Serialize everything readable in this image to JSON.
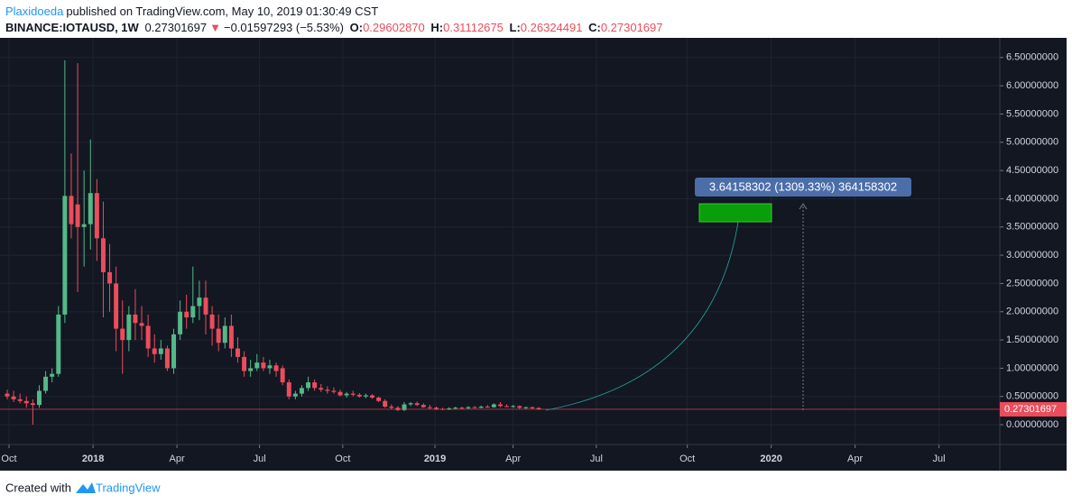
{
  "header": {
    "author": "Plaxidoeda",
    "published": "published on TradingView.com, May 10, 2019 01:30:49 CST",
    "symbol": "BINANCE:IOTAUSD, 1W",
    "price": "0.27301697",
    "arrow": "▼",
    "change": "−0.01597293 (−5.53%)",
    "o_label": "O:",
    "o": "0.29602870",
    "h_label": "H:",
    "h": "0.31112675",
    "l_label": "L:",
    "l": "0.26324491",
    "c_label": "C:",
    "c": "0.27301697"
  },
  "footer": {
    "created": "Created with",
    "brand": "TradingView"
  },
  "chart_data": {
    "type": "candlestick",
    "up_color": "#53b987",
    "down_color": "#eb4d5c",
    "background": "#131722",
    "grid": true,
    "annotation": "3.64158302 (1309.33%) 364158302",
    "x": [
      0,
      1,
      2,
      3,
      4,
      5,
      6,
      7,
      8,
      9,
      10,
      11,
      12,
      13,
      14,
      15,
      16,
      17,
      18,
      19,
      20,
      21,
      22,
      23,
      24,
      25,
      26,
      27,
      28,
      29,
      30,
      31,
      32,
      33,
      34,
      35,
      36,
      37,
      38,
      39,
      40,
      41,
      42,
      43,
      44,
      45,
      46,
      47,
      48,
      49,
      50,
      51,
      52,
      53,
      54,
      55,
      56,
      57,
      58,
      59,
      60,
      61,
      62,
      63,
      64,
      65,
      66,
      67,
      68,
      69,
      70,
      71,
      72,
      73,
      74,
      75,
      76,
      77,
      78,
      79,
      80,
      81,
      82,
      83
    ],
    "open": [
      0.55,
      0.5,
      0.45,
      0.42,
      0.38,
      0.35,
      0.6,
      0.85,
      0.9,
      1.95,
      4.05,
      3.9,
      3.5,
      3.55,
      4.1,
      3.3,
      2.7,
      2.5,
      1.7,
      1.5,
      1.95,
      1.8,
      1.75,
      1.35,
      1.25,
      1.35,
      1.0,
      1.6,
      2.0,
      1.9,
      2.1,
      2.25,
      1.95,
      1.7,
      1.45,
      1.75,
      1.35,
      1.2,
      0.95,
      1.0,
      1.1,
      1.0,
      1.05,
      1.0,
      0.75,
      0.5,
      0.55,
      0.65,
      0.75,
      0.65,
      0.62,
      0.6,
      0.58,
      0.52,
      0.55,
      0.53,
      0.5,
      0.52,
      0.48,
      0.42,
      0.32,
      0.3,
      0.26,
      0.36,
      0.38,
      0.35,
      0.31,
      0.3,
      0.28,
      0.27,
      0.29,
      0.3,
      0.29,
      0.31,
      0.3,
      0.32,
      0.31,
      0.36,
      0.33,
      0.32,
      0.33,
      0.3,
      0.31,
      0.2960287
    ],
    "high": [
      0.62,
      0.6,
      0.55,
      0.5,
      0.45,
      0.7,
      0.95,
      1.0,
      2.1,
      6.45,
      4.8,
      6.4,
      4.5,
      5.05,
      4.35,
      3.95,
      3.2,
      2.8,
      2.2,
      2.1,
      2.4,
      2.1,
      1.95,
      1.6,
      1.5,
      1.4,
      1.7,
      2.2,
      2.3,
      2.8,
      2.55,
      2.55,
      2.1,
      1.95,
      1.9,
      1.95,
      1.55,
      1.3,
      1.15,
      1.25,
      1.2,
      1.15,
      1.1,
      1.05,
      0.8,
      0.6,
      0.7,
      0.85,
      0.8,
      0.72,
      0.68,
      0.66,
      0.62,
      0.58,
      0.6,
      0.56,
      0.55,
      0.54,
      0.5,
      0.45,
      0.36,
      0.33,
      0.4,
      0.4,
      0.41,
      0.38,
      0.35,
      0.32,
      0.3,
      0.31,
      0.32,
      0.32,
      0.33,
      0.33,
      0.34,
      0.35,
      0.38,
      0.4,
      0.36,
      0.35,
      0.34,
      0.32,
      0.32,
      0.31112675
    ],
    "low": [
      0.45,
      0.4,
      0.38,
      0.3,
      0.0,
      0.3,
      0.55,
      0.75,
      0.85,
      1.8,
      3.3,
      2.35,
      2.8,
      3.1,
      2.9,
      1.9,
      2.0,
      1.3,
      0.9,
      1.3,
      1.5,
      1.5,
      1.2,
      1.1,
      1.15,
      0.95,
      0.9,
      1.5,
      1.7,
      1.8,
      1.85,
      1.6,
      1.4,
      1.3,
      1.35,
      1.2,
      1.1,
      0.85,
      0.85,
      0.95,
      0.95,
      0.9,
      0.85,
      0.7,
      0.45,
      0.45,
      0.5,
      0.6,
      0.6,
      0.58,
      0.55,
      0.55,
      0.5,
      0.48,
      0.5,
      0.48,
      0.47,
      0.46,
      0.4,
      0.3,
      0.27,
      0.24,
      0.24,
      0.33,
      0.33,
      0.3,
      0.28,
      0.26,
      0.26,
      0.26,
      0.27,
      0.28,
      0.28,
      0.29,
      0.29,
      0.3,
      0.3,
      0.31,
      0.31,
      0.3,
      0.28,
      0.28,
      0.28,
      0.26324491
    ],
    "close": [
      0.5,
      0.45,
      0.42,
      0.38,
      0.35,
      0.6,
      0.85,
      0.9,
      1.95,
      4.05,
      3.55,
      3.5,
      3.55,
      4.1,
      3.3,
      2.7,
      2.5,
      1.7,
      1.5,
      1.95,
      1.8,
      1.75,
      1.35,
      1.25,
      1.35,
      1.0,
      1.6,
      2.0,
      1.9,
      2.1,
      2.25,
      1.95,
      1.7,
      1.45,
      1.75,
      1.35,
      1.2,
      0.95,
      1.0,
      1.1,
      1.0,
      1.05,
      0.95,
      0.75,
      0.5,
      0.55,
      0.65,
      0.75,
      0.65,
      0.62,
      0.6,
      0.58,
      0.52,
      0.55,
      0.53,
      0.5,
      0.52,
      0.48,
      0.42,
      0.32,
      0.3,
      0.26,
      0.36,
      0.38,
      0.35,
      0.31,
      0.3,
      0.28,
      0.27,
      0.29,
      0.3,
      0.29,
      0.31,
      0.3,
      0.32,
      0.31,
      0.36,
      0.33,
      0.32,
      0.33,
      0.3,
      0.31,
      0.29,
      0.27301697
    ],
    "xlim": [
      0,
      155
    ],
    "ylim": [
      -0.35,
      6.8
    ],
    "xticks": [
      {
        "value": 0.28,
        "label": "Oct"
      },
      {
        "value": 13.4,
        "label": "2018"
      },
      {
        "value": 26.5,
        "label": "Apr"
      },
      {
        "value": 39.4,
        "label": "Jul"
      },
      {
        "value": 52.4,
        "label": "Oct"
      },
      {
        "value": 66.8,
        "label": "2019"
      },
      {
        "value": 79,
        "label": "Apr"
      },
      {
        "value": 92,
        "label": "Jul"
      },
      {
        "value": 106.2,
        "label": "Oct"
      },
      {
        "value": 119.3,
        "label": "2020"
      },
      {
        "value": 132.4,
        "label": "Apr"
      },
      {
        "value": 145.5,
        "label": "Jul"
      }
    ],
    "yticks": [
      {
        "value": 0,
        "label": "0.00000000"
      },
      {
        "value": 0.5,
        "label": "0.50000000"
      },
      {
        "value": 1,
        "label": "1.00000000"
      },
      {
        "value": 1.5,
        "label": "1.50000000"
      },
      {
        "value": 2,
        "label": "2.00000000"
      },
      {
        "value": 2.5,
        "label": "2.50000000"
      },
      {
        "value": 3,
        "label": "3.00000000"
      },
      {
        "value": 3.5,
        "label": "3.50000000"
      },
      {
        "value": 4,
        "label": "4.00000000"
      },
      {
        "value": 4.5,
        "label": "4.50000000"
      },
      {
        "value": 5,
        "label": "5.00000000"
      },
      {
        "value": 5.5,
        "label": "5.50000000"
      },
      {
        "value": 6,
        "label": "6.00000000"
      },
      {
        "value": 6.5,
        "label": "6.50000000"
      }
    ]
  }
}
